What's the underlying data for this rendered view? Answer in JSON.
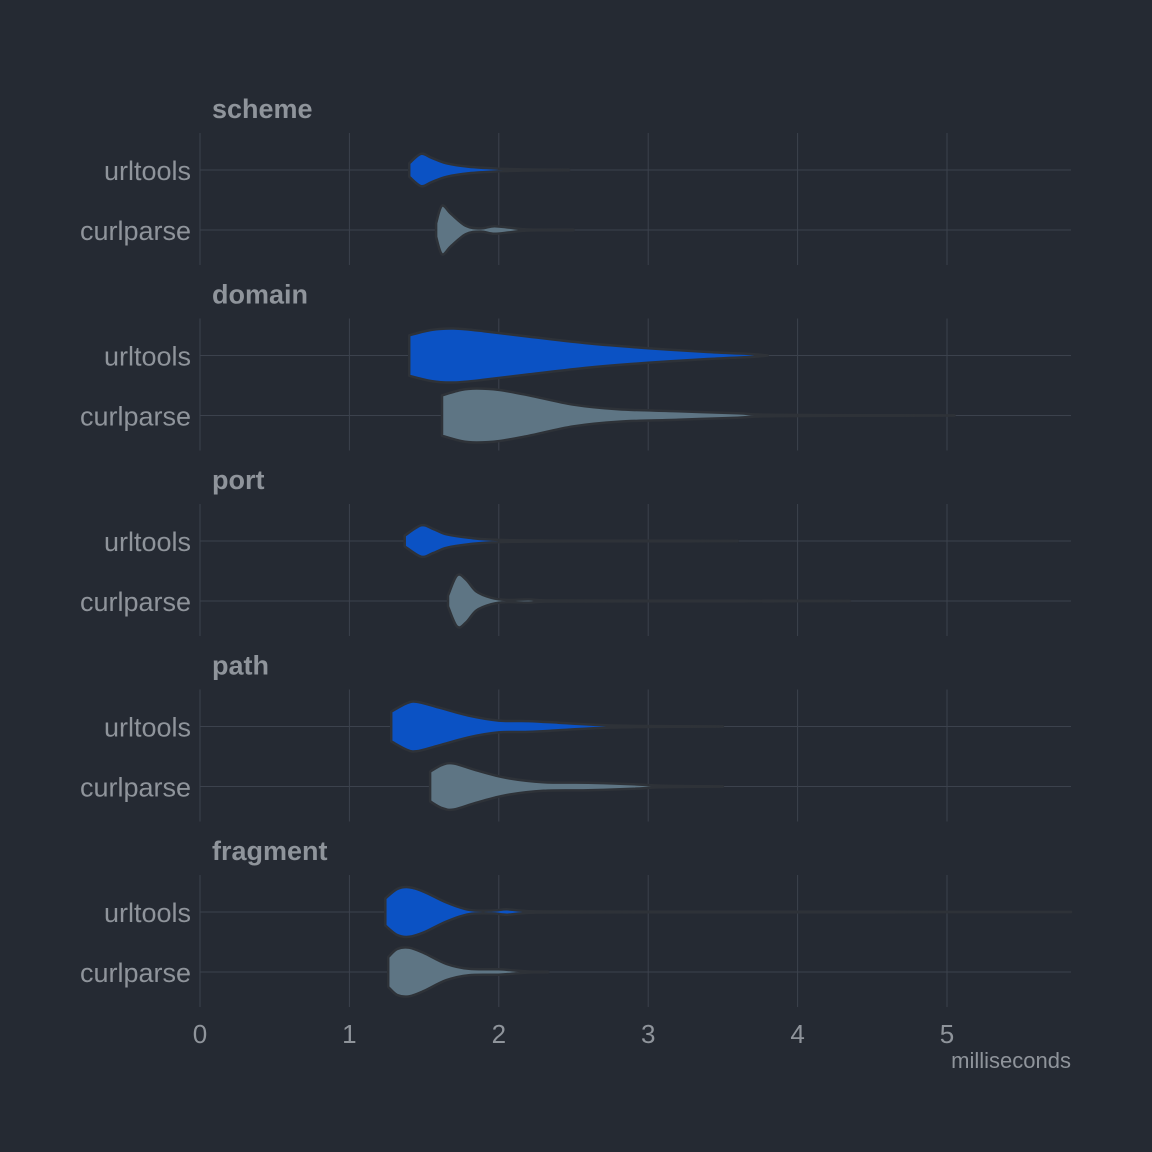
{
  "chart_data": {
    "type": "violin",
    "xlabel": "milliseconds",
    "xlim": [
      0,
      5.83
    ],
    "xticks": [
      0,
      1,
      2,
      3,
      4,
      5
    ],
    "groups": [
      "urltools",
      "curlparse"
    ],
    "colors": {
      "urltools": "#0b52c4",
      "curlparse": "#5e7584"
    },
    "facets": [
      {
        "title": "scheme",
        "violins": [
          {
            "name": "urltools",
            "min": 1.4,
            "max": 2.47,
            "shape": [
              [
                1.4,
                0.25
              ],
              [
                1.48,
                0.6
              ],
              [
                1.55,
                0.45
              ],
              [
                1.65,
                0.25
              ],
              [
                1.8,
                0.12
              ],
              [
                2.0,
                0.05
              ],
              [
                2.2,
                0.02
              ],
              [
                2.47,
                0.01
              ]
            ]
          },
          {
            "name": "curlparse",
            "min": 1.58,
            "max": 2.5,
            "shape": [
              [
                1.58,
                0.25
              ],
              [
                1.62,
                0.9
              ],
              [
                1.68,
                0.6
              ],
              [
                1.78,
                0.15
              ],
              [
                1.88,
                0.06
              ],
              [
                1.97,
                0.14
              ],
              [
                2.08,
                0.08
              ],
              [
                2.2,
                0.02
              ],
              [
                2.5,
                0.01
              ]
            ]
          }
        ]
      },
      {
        "title": "domain",
        "violins": [
          {
            "name": "urltools",
            "min": 1.4,
            "max": 3.8,
            "shape": [
              [
                1.4,
                0.75
              ],
              [
                1.55,
                0.95
              ],
              [
                1.7,
                1.0
              ],
              [
                1.9,
                0.9
              ],
              [
                2.2,
                0.7
              ],
              [
                2.6,
                0.45
              ],
              [
                3.0,
                0.27
              ],
              [
                3.4,
                0.13
              ],
              [
                3.7,
                0.05
              ],
              [
                3.8,
                0.0
              ]
            ]
          },
          {
            "name": "curlparse",
            "min": 1.62,
            "max": 5.05,
            "shape": [
              [
                1.62,
                0.75
              ],
              [
                1.75,
                0.95
              ],
              [
                1.85,
                1.0
              ],
              [
                2.0,
                0.95
              ],
              [
                2.2,
                0.75
              ],
              [
                2.5,
                0.4
              ],
              [
                2.8,
                0.23
              ],
              [
                3.2,
                0.16
              ],
              [
                3.6,
                0.08
              ],
              [
                3.8,
                0.03
              ],
              [
                4.5,
                0.01
              ],
              [
                5.05,
                0.005
              ]
            ]
          }
        ]
      },
      {
        "title": "port",
        "violins": [
          {
            "name": "urltools",
            "min": 1.37,
            "max": 3.6,
            "shape": [
              [
                1.37,
                0.2
              ],
              [
                1.48,
                0.58
              ],
              [
                1.56,
                0.45
              ],
              [
                1.65,
                0.25
              ],
              [
                1.8,
                0.12
              ],
              [
                2.0,
                0.04
              ],
              [
                2.5,
                0.015
              ],
              [
                3.0,
                0.01
              ],
              [
                3.6,
                0.005
              ]
            ]
          },
          {
            "name": "curlparse",
            "min": 1.66,
            "max": 4.35,
            "shape": [
              [
                1.66,
                0.2
              ],
              [
                1.72,
                0.95
              ],
              [
                1.78,
                0.8
              ],
              [
                1.85,
                0.35
              ],
              [
                1.95,
                0.12
              ],
              [
                2.05,
                0.04
              ],
              [
                2.2,
                0.06
              ],
              [
                2.35,
                0.02
              ],
              [
                3.0,
                0.01
              ],
              [
                4.35,
                0.005
              ]
            ]
          }
        ]
      },
      {
        "title": "path",
        "violins": [
          {
            "name": "urltools",
            "min": 1.28,
            "max": 3.5,
            "shape": [
              [
                1.28,
                0.55
              ],
              [
                1.38,
                0.85
              ],
              [
                1.45,
                0.92
              ],
              [
                1.6,
                0.7
              ],
              [
                1.8,
                0.4
              ],
              [
                2.0,
                0.22
              ],
              [
                2.2,
                0.2
              ],
              [
                2.4,
                0.14
              ],
              [
                2.7,
                0.05
              ],
              [
                3.0,
                0.02
              ],
              [
                3.5,
                0.005
              ]
            ]
          },
          {
            "name": "curlparse",
            "min": 1.54,
            "max": 3.5,
            "shape": [
              [
                1.54,
                0.55
              ],
              [
                1.62,
                0.8
              ],
              [
                1.7,
                0.85
              ],
              [
                1.85,
                0.6
              ],
              [
                2.05,
                0.32
              ],
              [
                2.3,
                0.16
              ],
              [
                2.6,
                0.14
              ],
              [
                2.9,
                0.08
              ],
              [
                3.1,
                0.03
              ],
              [
                3.5,
                0.005
              ]
            ]
          }
        ]
      },
      {
        "title": "fragment",
        "violins": [
          {
            "name": "urltools",
            "min": 1.24,
            "max": 5.83,
            "shape": [
              [
                1.24,
                0.5
              ],
              [
                1.32,
                0.85
              ],
              [
                1.4,
                0.92
              ],
              [
                1.5,
                0.75
              ],
              [
                1.65,
                0.35
              ],
              [
                1.8,
                0.08
              ],
              [
                1.95,
                0.05
              ],
              [
                2.05,
                0.1
              ],
              [
                2.15,
                0.05
              ],
              [
                2.3,
                0.02
              ],
              [
                3.0,
                0.01
              ],
              [
                4.5,
                0.008
              ],
              [
                5.83,
                0.005
              ]
            ]
          },
          {
            "name": "curlparse",
            "min": 1.26,
            "max": 2.33,
            "shape": [
              [
                1.26,
                0.55
              ],
              [
                1.32,
                0.85
              ],
              [
                1.4,
                0.9
              ],
              [
                1.5,
                0.7
              ],
              [
                1.65,
                0.3
              ],
              [
                1.8,
                0.12
              ],
              [
                2.0,
                0.1
              ],
              [
                2.1,
                0.06
              ],
              [
                2.2,
                0.02
              ],
              [
                2.33,
                0.01
              ]
            ]
          }
        ]
      }
    ]
  }
}
